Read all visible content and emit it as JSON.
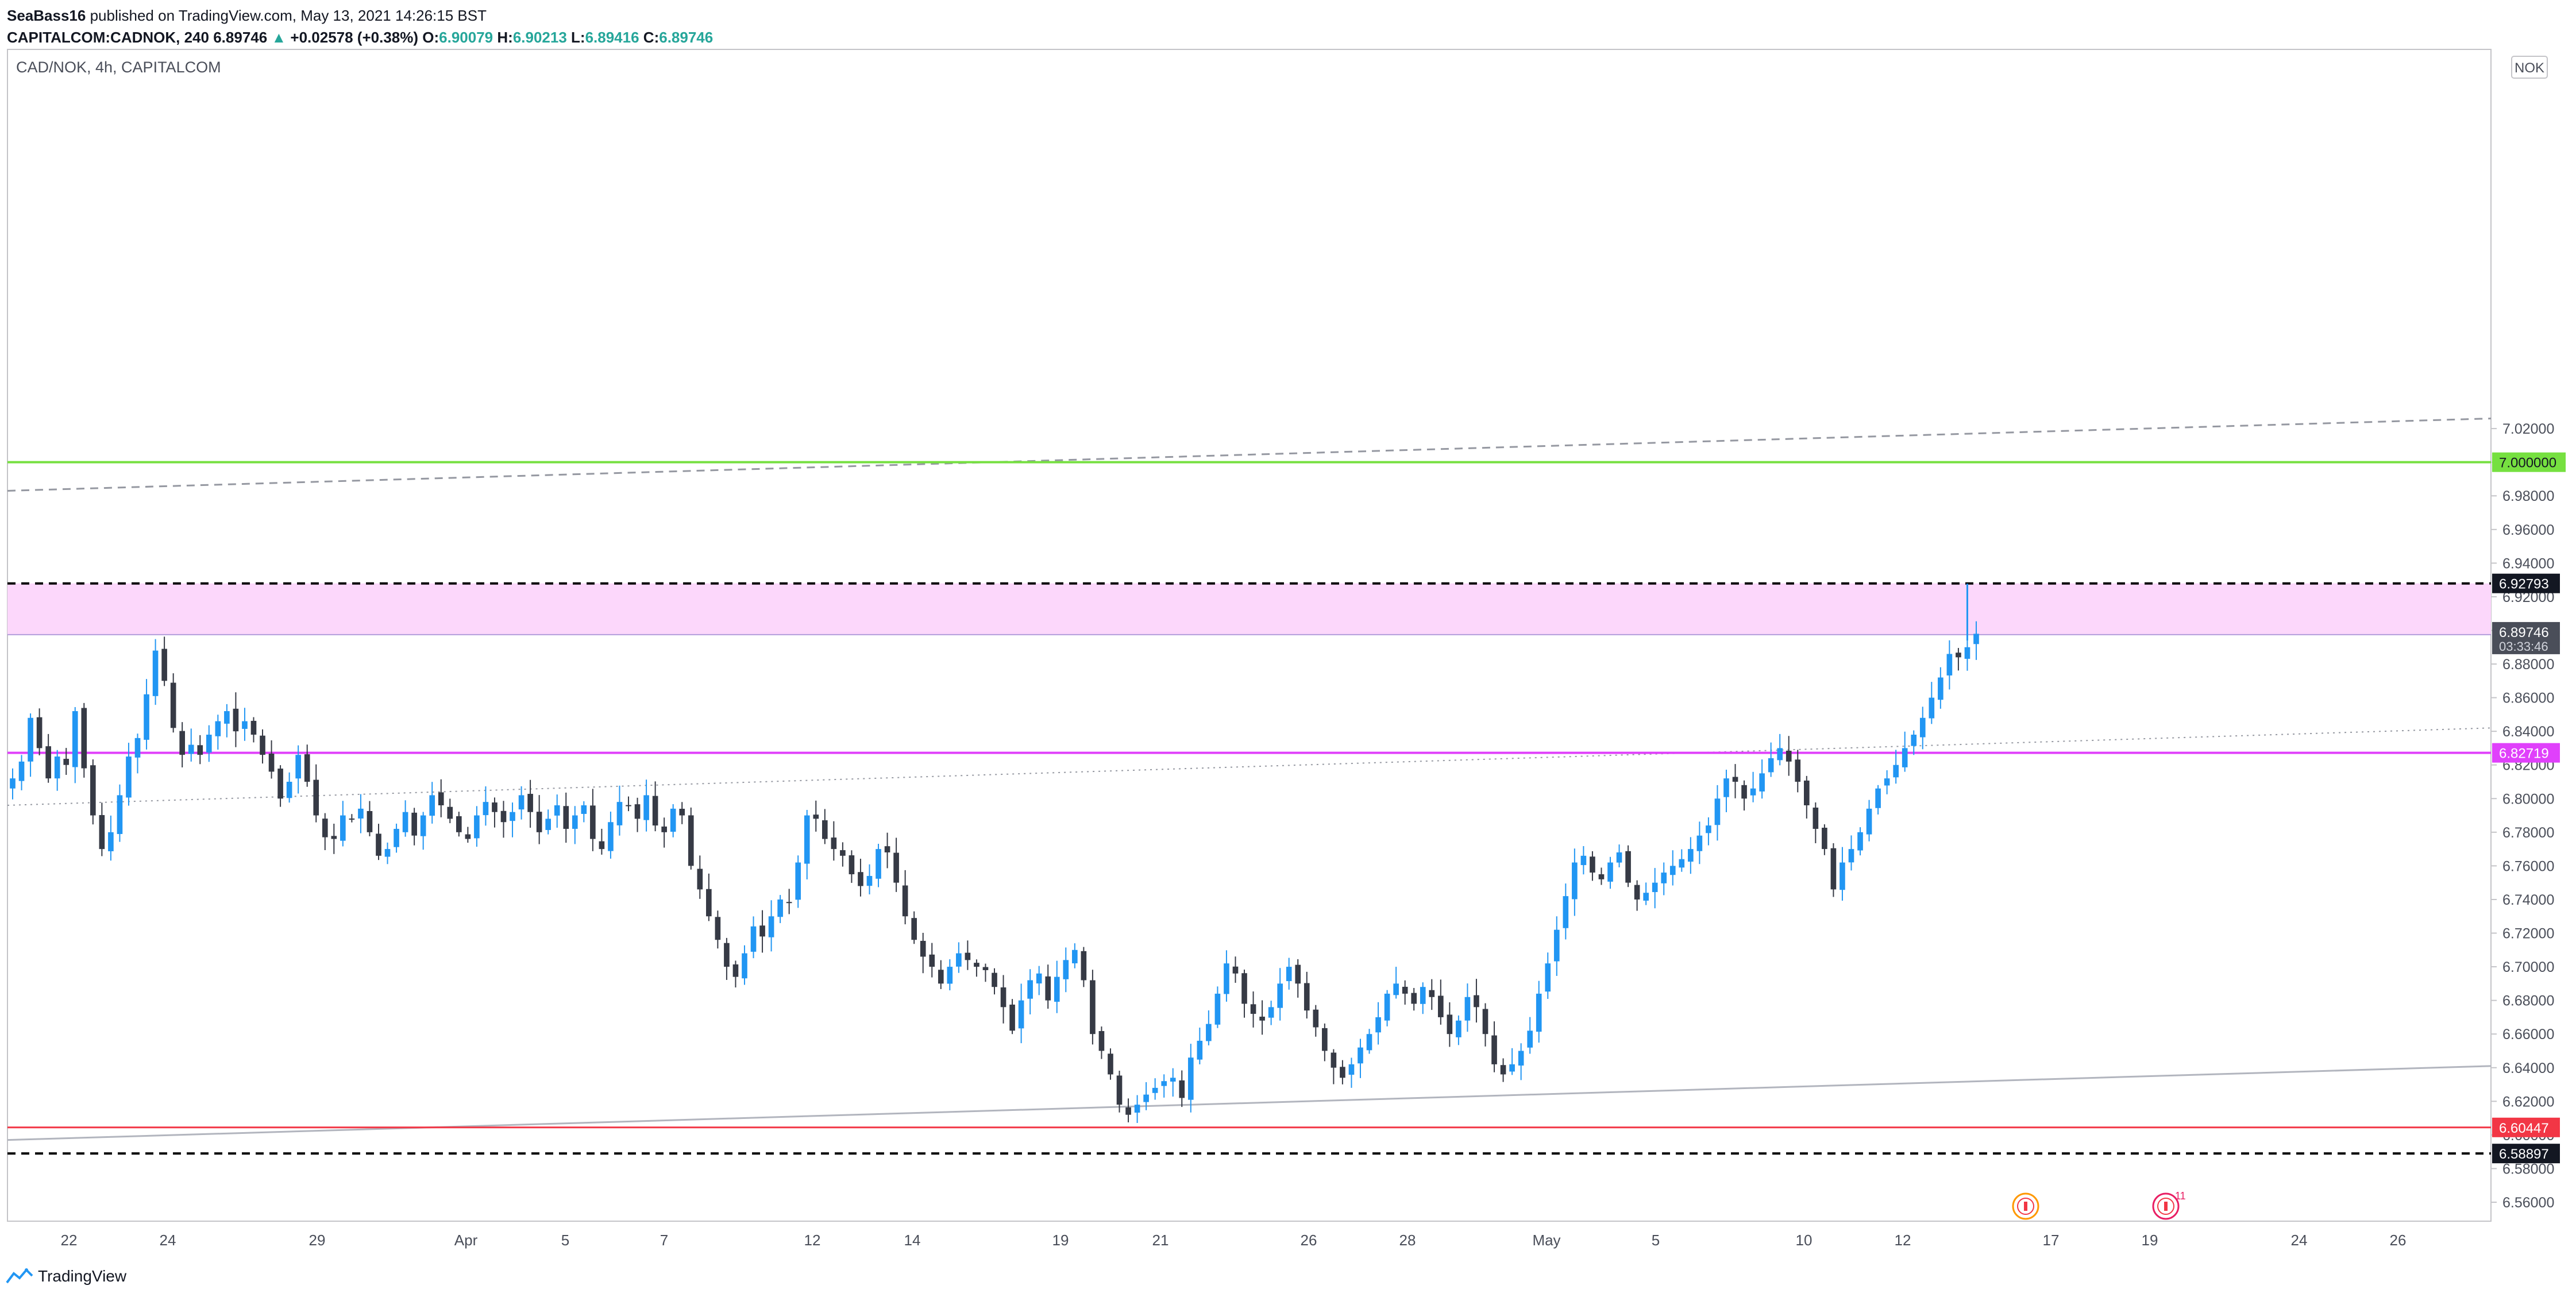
{
  "header": {
    "author": "SeaBass16",
    "published": "published on TradingView.com, May 13, 2021 14:26:15 BST",
    "symbol": "CAPITALCOM:CADNOK, 240",
    "last": "6.89746",
    "change_arrow": "▲",
    "change": "+0.02578 (+0.38%)",
    "o_label": "O:",
    "o_val": "6.90079",
    "h_label": "H:",
    "h_val": "6.90213",
    "l_label": "L:",
    "l_val": "6.89416",
    "c_label": "C:",
    "c_val": "6.89746"
  },
  "chart_title": "CAD/NOK, 4h, CAPITALCOM",
  "currency_label": "NOK",
  "countdown": "03:33:46",
  "footer_brand": "TradingView",
  "colors": {
    "up": "#2196f3",
    "down": "#363a45",
    "zone": "#fcd7fb",
    "green_level": "#76e040",
    "magenta_level": "#e040fb",
    "red_level": "#f23645"
  },
  "chart_data": {
    "type": "candlestick",
    "timeframe": "4h",
    "ylim": [
      6.55,
      7.03
    ],
    "y_ticks": [
      "6.56000",
      "6.58000",
      "6.60000",
      "6.62000",
      "6.64000",
      "6.66000",
      "6.68000",
      "6.70000",
      "6.72000",
      "6.74000",
      "6.76000",
      "6.78000",
      "6.80000",
      "6.82000",
      "6.84000",
      "6.86000",
      "6.88000",
      "6.90000",
      "6.92000",
      "6.94000",
      "6.96000",
      "6.98000",
      "7.00000",
      "7.02000"
    ],
    "x_ticks": [
      "22",
      "24",
      "29",
      "Apr",
      "5",
      "7",
      "12",
      "14",
      "19",
      "21",
      "26",
      "28",
      "May",
      "5",
      "10",
      "12",
      "17",
      "19",
      "24",
      "26"
    ],
    "price_levels": [
      {
        "label": "7.000000",
        "value": 7.0,
        "style": "solid-green"
      },
      {
        "label": "6.92793",
        "value": 6.92793,
        "style": "dashed-black"
      },
      {
        "label": "6.89746",
        "value": 6.89746,
        "style": "last-price"
      },
      {
        "label": "6.82719",
        "value": 6.82719,
        "style": "solid-magenta"
      },
      {
        "label": "6.60447",
        "value": 6.60447,
        "style": "solid-red"
      },
      {
        "label": "6.58897",
        "value": 6.58897,
        "style": "dashed-black"
      }
    ],
    "zone": {
      "top": 6.92793,
      "bottom": 6.89746
    },
    "trendlines": [
      {
        "name": "upper-dashed",
        "from": [
          0,
          6.983
        ],
        "to": [
          1.0,
          7.026
        ],
        "style": "dashed-gray"
      },
      {
        "name": "middle-dotted",
        "from": [
          0,
          6.796
        ],
        "to": [
          1.0,
          6.842
        ],
        "style": "dotted-gray"
      },
      {
        "name": "lower-solid",
        "from": [
          0,
          6.597
        ],
        "to": [
          1.0,
          6.641
        ],
        "style": "solid-gray"
      }
    ],
    "close_path": [
      6.812,
      6.822,
      6.848,
      6.83,
      6.812,
      6.825,
      6.82,
      6.852,
      6.818,
      6.79,
      6.77,
      6.78,
      6.802,
      6.825,
      6.836,
      6.862,
      6.888,
      6.87,
      6.842,
      6.826,
      6.832,
      6.826,
      6.838,
      6.846,
      6.852,
      6.84,
      6.846,
      6.838,
      6.826,
      6.816,
      6.8,
      6.81,
      6.826,
      6.81,
      6.79,
      6.777,
      6.776,
      6.79,
      6.788,
      6.794,
      6.78,
      6.766,
      6.77,
      6.782,
      6.792,
      6.778,
      6.79,
      6.802,
      6.796,
      6.788,
      6.78,
      6.776,
      6.79,
      6.798,
      6.792,
      6.786,
      6.792,
      6.802,
      6.792,
      6.78,
      6.788,
      6.796,
      6.782,
      6.79,
      6.796,
      6.776,
      6.77,
      6.786,
      6.798,
      6.796,
      6.788,
      6.802,
      6.784,
      6.78,
      6.794,
      6.79,
      6.76,
      6.746,
      6.73,
      6.716,
      6.7,
      6.694,
      6.708,
      6.724,
      6.718,
      6.73,
      6.74,
      6.738,
      6.762,
      6.79,
      6.788,
      6.776,
      6.77,
      6.766,
      6.755,
      6.748,
      6.754,
      6.77,
      6.768,
      6.75,
      6.73,
      6.716,
      6.706,
      6.7,
      6.69,
      6.7,
      6.708,
      6.704,
      6.7,
      6.698,
      6.688,
      6.676,
      6.662,
      6.68,
      6.692,
      6.696,
      6.68,
      6.694,
      6.704,
      6.71,
      6.692,
      6.66,
      6.65,
      6.636,
      6.618,
      6.612,
      6.618,
      6.624,
      6.628,
      6.632,
      6.634,
      6.622,
      6.646,
      6.656,
      6.666,
      6.684,
      6.702,
      6.696,
      6.678,
      6.672,
      6.668,
      6.676,
      6.69,
      6.7,
      6.69,
      6.674,
      6.664,
      6.65,
      6.64,
      6.634,
      6.642,
      6.652,
      6.66,
      6.67,
      6.684,
      6.69,
      6.684,
      6.678,
      6.688,
      6.682,
      6.67,
      6.66,
      6.668,
      6.682,
      6.676,
      6.66,
      6.642,
      6.636,
      6.642,
      6.65,
      6.662,
      6.684,
      6.702,
      6.722,
      6.742,
      6.762,
      6.766,
      6.756,
      6.752,
      6.762,
      6.768,
      6.75,
      6.74,
      6.744,
      6.75,
      6.756,
      6.76,
      6.764,
      6.77,
      6.778,
      6.784,
      6.8,
      6.812,
      6.81,
      6.8,
      6.806,
      6.815,
      6.824,
      6.83,
      6.822,
      6.81,
      6.796,
      6.782,
      6.77,
      6.746,
      6.762,
      6.77,
      6.78,
      6.794,
      6.806,
      6.812,
      6.82,
      6.83,
      6.838,
      6.848,
      6.86,
      6.872,
      6.886,
      6.884,
      6.89,
      6.898
    ]
  }
}
